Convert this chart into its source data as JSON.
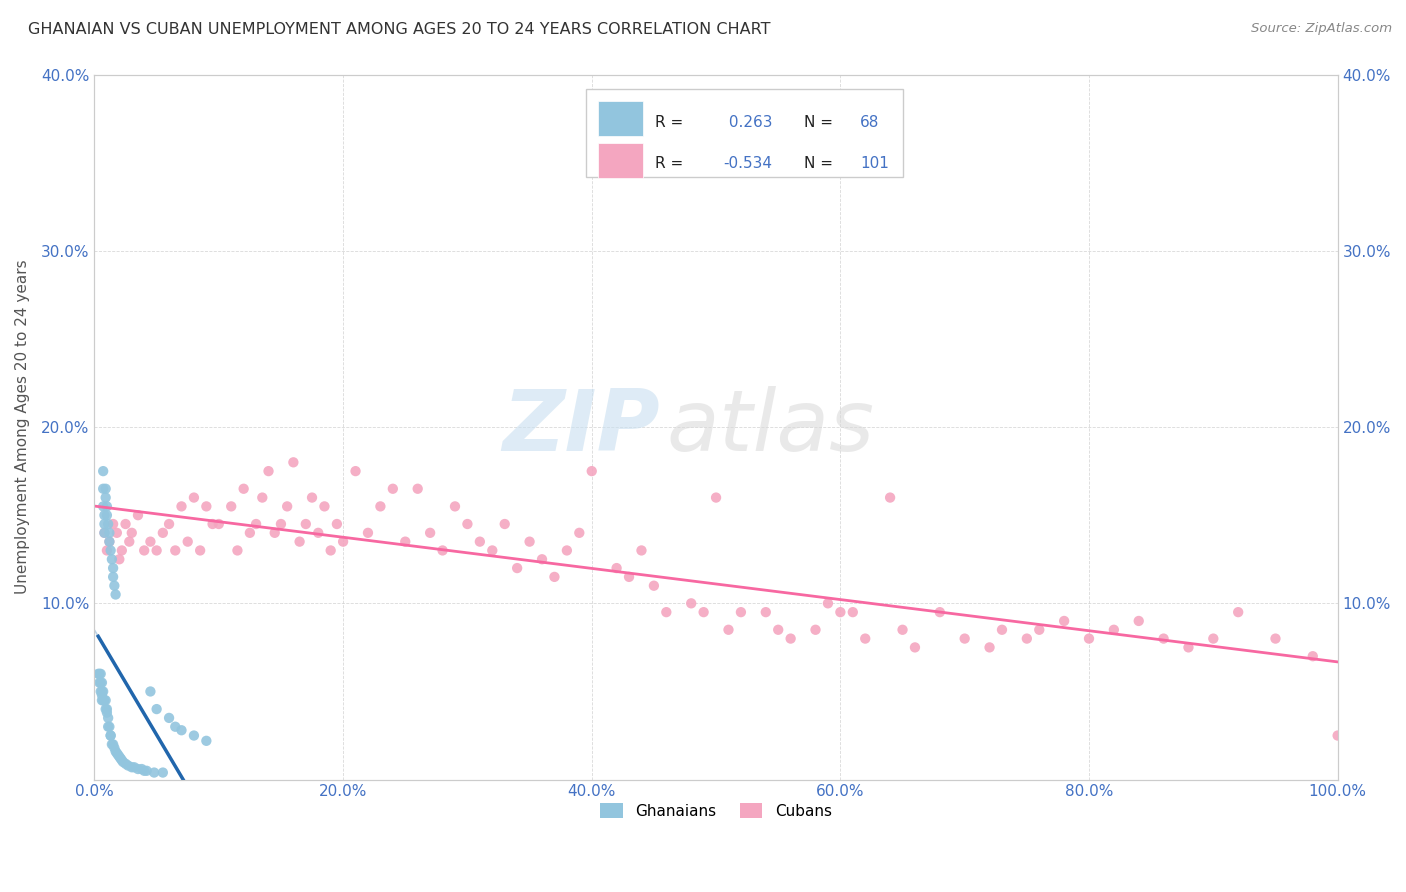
{
  "title": "GHANAIAN VS CUBAN UNEMPLOYMENT AMONG AGES 20 TO 24 YEARS CORRELATION CHART",
  "source": "Source: ZipAtlas.com",
  "ylabel": "Unemployment Among Ages 20 to 24 years",
  "xlim": [
    0,
    1.0
  ],
  "ylim": [
    0,
    0.4
  ],
  "xticks": [
    0.0,
    0.2,
    0.4,
    0.6,
    0.8,
    1.0
  ],
  "xticklabels": [
    "0.0%",
    "20.0%",
    "40.0%",
    "60.0%",
    "80.0%",
    "100.0%"
  ],
  "yticks": [
    0.0,
    0.1,
    0.2,
    0.3,
    0.4
  ],
  "yticklabels": [
    "",
    "10.0%",
    "20.0%",
    "30.0%",
    "40.0%"
  ],
  "watermark_zip": "ZIP",
  "watermark_atlas": "atlas",
  "ghanaian_color": "#92c5de",
  "cuban_color": "#f4a6c0",
  "ghanaian_R": 0.263,
  "ghanaian_N": 68,
  "cuban_R": -0.534,
  "cuban_N": 101,
  "ghanaian_trend_color": "#2166ac",
  "cuban_trend_color": "#f768a1",
  "ghanaian_dashed_color": "#aec9e0",
  "background_color": "#ffffff",
  "tick_color": "#4472C4",
  "ghanaian_x": [
    0.003,
    0.004,
    0.004,
    0.005,
    0.005,
    0.005,
    0.006,
    0.006,
    0.006,
    0.006,
    0.007,
    0.007,
    0.007,
    0.007,
    0.007,
    0.008,
    0.008,
    0.008,
    0.008,
    0.009,
    0.009,
    0.009,
    0.009,
    0.01,
    0.01,
    0.01,
    0.01,
    0.011,
    0.011,
    0.011,
    0.012,
    0.012,
    0.012,
    0.013,
    0.013,
    0.013,
    0.014,
    0.014,
    0.015,
    0.015,
    0.015,
    0.016,
    0.016,
    0.017,
    0.017,
    0.018,
    0.019,
    0.02,
    0.021,
    0.022,
    0.023,
    0.025,
    0.027,
    0.03,
    0.032,
    0.035,
    0.038,
    0.04,
    0.042,
    0.045,
    0.048,
    0.05,
    0.055,
    0.06,
    0.065,
    0.07,
    0.08,
    0.09
  ],
  "ghanaian_y": [
    0.06,
    0.06,
    0.055,
    0.06,
    0.055,
    0.05,
    0.055,
    0.05,
    0.048,
    0.045,
    0.175,
    0.165,
    0.155,
    0.05,
    0.045,
    0.15,
    0.145,
    0.14,
    0.045,
    0.165,
    0.16,
    0.045,
    0.04,
    0.155,
    0.15,
    0.04,
    0.038,
    0.145,
    0.035,
    0.03,
    0.14,
    0.135,
    0.03,
    0.13,
    0.025,
    0.025,
    0.125,
    0.02,
    0.12,
    0.115,
    0.02,
    0.11,
    0.018,
    0.105,
    0.016,
    0.015,
    0.014,
    0.013,
    0.012,
    0.011,
    0.01,
    0.009,
    0.008,
    0.007,
    0.007,
    0.006,
    0.006,
    0.005,
    0.005,
    0.05,
    0.004,
    0.04,
    0.004,
    0.035,
    0.03,
    0.028,
    0.025,
    0.022
  ],
  "cuban_x": [
    0.008,
    0.01,
    0.012,
    0.015,
    0.018,
    0.02,
    0.022,
    0.025,
    0.028,
    0.03,
    0.035,
    0.04,
    0.045,
    0.05,
    0.055,
    0.06,
    0.065,
    0.07,
    0.075,
    0.08,
    0.085,
    0.09,
    0.095,
    0.1,
    0.11,
    0.115,
    0.12,
    0.125,
    0.13,
    0.135,
    0.14,
    0.145,
    0.15,
    0.155,
    0.16,
    0.165,
    0.17,
    0.175,
    0.18,
    0.185,
    0.19,
    0.195,
    0.2,
    0.21,
    0.22,
    0.23,
    0.24,
    0.25,
    0.26,
    0.27,
    0.28,
    0.29,
    0.3,
    0.31,
    0.32,
    0.33,
    0.34,
    0.35,
    0.36,
    0.37,
    0.38,
    0.39,
    0.4,
    0.42,
    0.43,
    0.44,
    0.45,
    0.46,
    0.48,
    0.49,
    0.5,
    0.51,
    0.52,
    0.54,
    0.55,
    0.56,
    0.58,
    0.59,
    0.6,
    0.61,
    0.62,
    0.64,
    0.65,
    0.66,
    0.68,
    0.7,
    0.72,
    0.73,
    0.75,
    0.76,
    0.78,
    0.8,
    0.82,
    0.84,
    0.86,
    0.88,
    0.9,
    0.92,
    0.95,
    0.98,
    1.0
  ],
  "cuban_y": [
    0.14,
    0.13,
    0.135,
    0.145,
    0.14,
    0.125,
    0.13,
    0.145,
    0.135,
    0.14,
    0.15,
    0.13,
    0.135,
    0.13,
    0.14,
    0.145,
    0.13,
    0.155,
    0.135,
    0.16,
    0.13,
    0.155,
    0.145,
    0.145,
    0.155,
    0.13,
    0.165,
    0.14,
    0.145,
    0.16,
    0.175,
    0.14,
    0.145,
    0.155,
    0.18,
    0.135,
    0.145,
    0.16,
    0.14,
    0.155,
    0.13,
    0.145,
    0.135,
    0.175,
    0.14,
    0.155,
    0.165,
    0.135,
    0.165,
    0.14,
    0.13,
    0.155,
    0.145,
    0.135,
    0.13,
    0.145,
    0.12,
    0.135,
    0.125,
    0.115,
    0.13,
    0.14,
    0.175,
    0.12,
    0.115,
    0.13,
    0.11,
    0.095,
    0.1,
    0.095,
    0.16,
    0.085,
    0.095,
    0.095,
    0.085,
    0.08,
    0.085,
    0.1,
    0.095,
    0.095,
    0.08,
    0.16,
    0.085,
    0.075,
    0.095,
    0.08,
    0.075,
    0.085,
    0.08,
    0.085,
    0.09,
    0.08,
    0.085,
    0.09,
    0.08,
    0.075,
    0.08,
    0.095,
    0.08,
    0.07,
    0.025
  ]
}
